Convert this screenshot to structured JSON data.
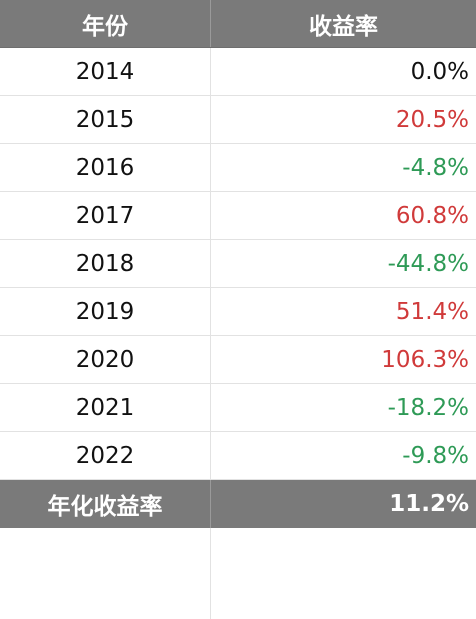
{
  "header": {
    "year_label": "年份",
    "return_label": "收益率"
  },
  "rows": [
    {
      "year": "2014",
      "return": "0.0%",
      "sign": "zero"
    },
    {
      "year": "2015",
      "return": "20.5%",
      "sign": "pos"
    },
    {
      "year": "2016",
      "return": "-4.8%",
      "sign": "neg"
    },
    {
      "year": "2017",
      "return": "60.8%",
      "sign": "pos"
    },
    {
      "year": "2018",
      "return": "-44.8%",
      "sign": "neg"
    },
    {
      "year": "2019",
      "return": "51.4%",
      "sign": "pos"
    },
    {
      "year": "2020",
      "return": "106.3%",
      "sign": "pos"
    },
    {
      "year": "2021",
      "return": "-18.2%",
      "sign": "neg"
    },
    {
      "year": "2022",
      "return": "-9.8%",
      "sign": "neg"
    }
  ],
  "footer": {
    "label": "年化收益率",
    "value": "11.2%"
  },
  "colors": {
    "header_bg": "#7a7a7a",
    "positive": "#d03a3a",
    "negative": "#2e9a56",
    "neutral": "#111111"
  }
}
